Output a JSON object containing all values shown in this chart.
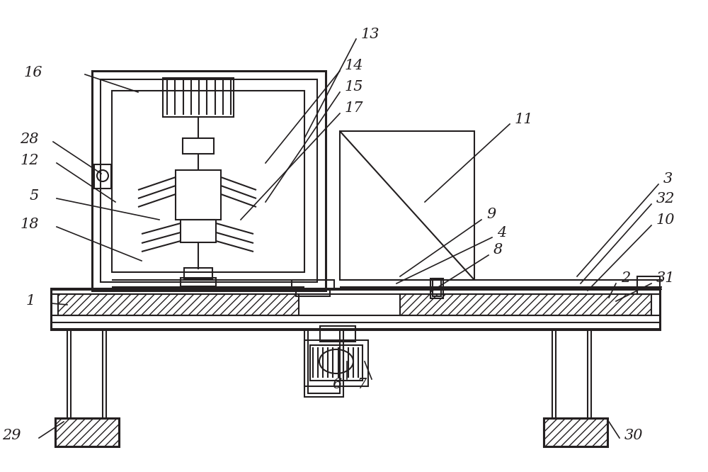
{
  "bg_color": "#ffffff",
  "line_color": "#231f20",
  "lw": 1.5,
  "lw2": 2.2,
  "fig_w": 10.0,
  "fig_h": 6.66,
  "dpi": 100,
  "annotations": [
    {
      "label": "13",
      "line_from": [
        503,
        55
      ],
      "line_to": [
        430,
        195
      ],
      "text": [
        510,
        48
      ]
    },
    {
      "label": "14",
      "line_from": [
        480,
        100
      ],
      "line_to": [
        375,
        230
      ],
      "text": [
        487,
        93
      ]
    },
    {
      "label": "15",
      "line_from": [
        480,
        130
      ],
      "line_to": [
        375,
        285
      ],
      "text": [
        487,
        123
      ]
    },
    {
      "label": "16",
      "line_from": [
        120,
        105
      ],
      "line_to": [
        195,
        130
      ],
      "text": [
        60,
        102
      ]
    },
    {
      "label": "17",
      "line_from": [
        480,
        160
      ],
      "line_to": [
        340,
        310
      ],
      "text": [
        487,
        153
      ]
    },
    {
      "label": "28",
      "line_from": [
        75,
        200
      ],
      "line_to": [
        143,
        245
      ],
      "text": [
        55,
        197
      ]
    },
    {
      "label": "12",
      "line_from": [
        80,
        230
      ],
      "line_to": [
        163,
        285
      ],
      "text": [
        55,
        227
      ]
    },
    {
      "label": "5",
      "line_from": [
        80,
        280
      ],
      "line_to": [
        225,
        310
      ],
      "text": [
        55,
        277
      ]
    },
    {
      "label": "18",
      "line_from": [
        80,
        320
      ],
      "line_to": [
        200,
        368
      ],
      "text": [
        55,
        317
      ]
    },
    {
      "label": "11",
      "line_from": [
        720,
        175
      ],
      "line_to": [
        600,
        285
      ],
      "text": [
        727,
        168
      ]
    },
    {
      "label": "9",
      "line_from": [
        680,
        310
      ],
      "line_to": [
        565,
        390
      ],
      "text": [
        687,
        303
      ]
    },
    {
      "label": "4",
      "line_from": [
        695,
        335
      ],
      "line_to": [
        560,
        400
      ],
      "text": [
        702,
        328
      ]
    },
    {
      "label": "8",
      "line_from": [
        690,
        360
      ],
      "line_to": [
        608,
        412
      ],
      "text": [
        697,
        353
      ]
    },
    {
      "label": "3",
      "line_from": [
        930,
        260
      ],
      "line_to": [
        815,
        390
      ],
      "text": [
        937,
        253
      ]
    },
    {
      "label": "32",
      "line_from": [
        920,
        288
      ],
      "line_to": [
        820,
        400
      ],
      "text": [
        927,
        281
      ]
    },
    {
      "label": "10",
      "line_from": [
        920,
        318
      ],
      "line_to": [
        830,
        410
      ],
      "text": [
        927,
        311
      ]
    },
    {
      "label": "31",
      "line_from": [
        920,
        400
      ],
      "line_to": [
        870,
        425
      ],
      "text": [
        927,
        393
      ]
    },
    {
      "label": "1",
      "line_from": [
        72,
        428
      ],
      "line_to": [
        95,
        430
      ],
      "text": [
        50,
        425
      ]
    },
    {
      "label": "2",
      "line_from": [
        870,
        400
      ],
      "line_to": [
        860,
        420
      ],
      "text": [
        877,
        393
      ]
    },
    {
      "label": "6",
      "line_from": [
        490,
        535
      ],
      "line_to": [
        490,
        510
      ],
      "text": [
        483,
        543
      ]
    },
    {
      "label": "7",
      "line_from": [
        525,
        535
      ],
      "line_to": [
        515,
        510
      ],
      "text": [
        518,
        543
      ]
    },
    {
      "label": "29",
      "line_from": [
        55,
        618
      ],
      "line_to": [
        90,
        595
      ],
      "text": [
        30,
        615
      ]
    },
    {
      "label": "30",
      "line_from": [
        875,
        618
      ],
      "line_to": [
        860,
        595
      ],
      "text": [
        882,
        615
      ]
    }
  ]
}
